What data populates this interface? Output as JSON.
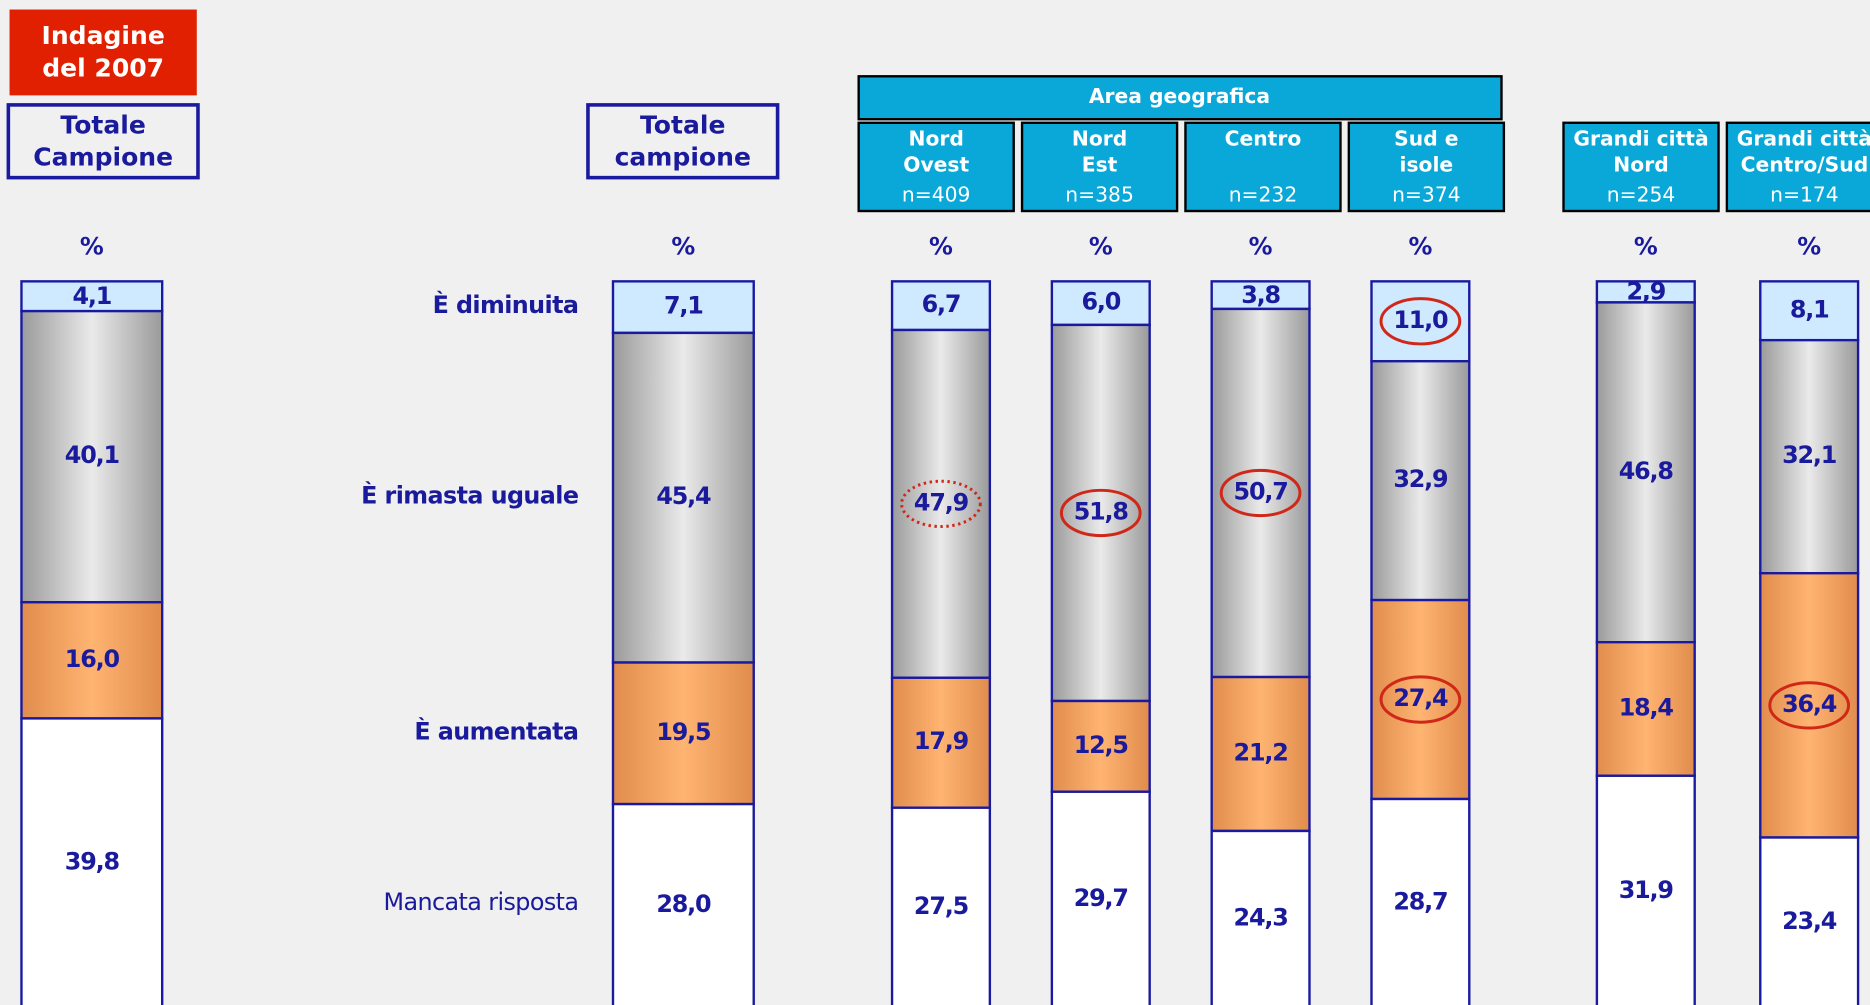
{
  "chart_data": {
    "type": "bar",
    "stacked": true,
    "badge": "Indagine\ndel 2007",
    "group_label": "Area geografica",
    "unit": "%",
    "categories": [
      "Totale\nCampione",
      "Totale\ncampione",
      "Nord\nOvest",
      "Nord\nEst",
      "Centro",
      "Sud e\nisole",
      "Grandi città\nNord",
      "Grandi città\nCentro/Sud"
    ],
    "sample_sizes": [
      null,
      null,
      "n=409",
      "n=385",
      "n=232",
      "n=374",
      "n=254",
      "n=174"
    ],
    "ylim": [
      0,
      100
    ],
    "series": [
      {
        "name": "È diminuita",
        "color": "#cfe9ff",
        "values": [
          4.1,
          7.1,
          6.7,
          6.0,
          3.8,
          11.0,
          2.9,
          8.1
        ],
        "value_labels": [
          "4,1",
          "7,1",
          "6,7",
          "6,0",
          "3,8",
          "11,0",
          "2,9",
          "8,1"
        ]
      },
      {
        "name": "È rimasta uguale",
        "color": "#c0c0c0",
        "values": [
          40.1,
          45.4,
          47.9,
          51.8,
          50.7,
          32.9,
          46.8,
          32.1
        ],
        "value_labels": [
          "40,1",
          "45,4",
          "47,9",
          "51,8",
          "50,7",
          "32,9",
          "46,8",
          "32,1"
        ]
      },
      {
        "name": "È aumentata",
        "color": "#f0a060",
        "values": [
          16.0,
          19.5,
          17.9,
          12.5,
          21.2,
          27.4,
          18.4,
          36.4
        ],
        "value_labels": [
          "16,0",
          "19,5",
          "17,9",
          "12,5",
          "21,2",
          "27,4",
          "18,4",
          "36,4"
        ]
      },
      {
        "name": "Mancata risposta",
        "color": "#ffffff",
        "values": [
          39.8,
          28.0,
          27.5,
          29.7,
          24.3,
          28.7,
          31.9,
          23.4
        ],
        "value_labels": [
          "39,8",
          "28,0",
          "27,5",
          "29,7",
          "24,3",
          "28,7",
          "31,9",
          "23,4"
        ]
      }
    ],
    "highlights": [
      {
        "series": 1,
        "index": 2,
        "style": "dotted"
      },
      {
        "series": 1,
        "index": 3,
        "style": "solid"
      },
      {
        "series": 1,
        "index": 4,
        "style": "solid"
      },
      {
        "series": 0,
        "index": 5,
        "style": "solid"
      },
      {
        "series": 2,
        "index": 5,
        "style": "solid"
      },
      {
        "series": 2,
        "index": 7,
        "style": "solid"
      }
    ]
  }
}
